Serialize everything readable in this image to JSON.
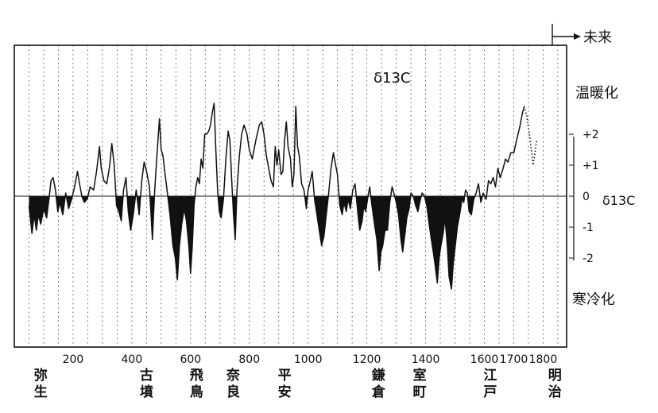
{
  "chart_data": {
    "type": "area",
    "series_label": "δ13C",
    "x_ticks": [
      200,
      400,
      600,
      800,
      1000,
      1200,
      1400,
      1600,
      1700,
      1800
    ],
    "y_ticks": [
      "+2",
      "+1",
      "0",
      "-1",
      "-2"
    ],
    "y_axis_label": "δ13C",
    "xlim": [
      0,
      1880
    ],
    "ylim": [
      -2.5,
      3.0
    ],
    "annotations": {
      "warm": "温暖化",
      "cold": "寒冷化",
      "future": "未来"
    },
    "eras": [
      {
        "line1": "弥",
        "line2": "生",
        "year": 90
      },
      {
        "line1": "古",
        "line2": "墳",
        "year": 450
      },
      {
        "line1": "飛",
        "line2": "鳥",
        "year": 620
      },
      {
        "line1": "奈",
        "line2": "良",
        "year": 745
      },
      {
        "line1": "平",
        "line2": "安",
        "year": 920
      },
      {
        "line1": "鎌",
        "line2": "倉",
        "year": 1240
      },
      {
        "line1": "室",
        "line2": "町",
        "year": 1380
      },
      {
        "line1": "江",
        "line2": "戸",
        "year": 1620
      },
      {
        "line1": "明",
        "line2": "治",
        "year": 1840
      }
    ],
    "points": [
      [
        50,
        -0.3
      ],
      [
        60,
        -1.2
      ],
      [
        68,
        -0.6
      ],
      [
        75,
        -1.1
      ],
      [
        82,
        -0.6
      ],
      [
        90,
        -0.9
      ],
      [
        100,
        -0.4
      ],
      [
        110,
        -0.7
      ],
      [
        118,
        -0.1
      ],
      [
        125,
        0.5
      ],
      [
        132,
        0.6
      ],
      [
        140,
        0.2
      ],
      [
        148,
        -0.5
      ],
      [
        155,
        -0.2
      ],
      [
        165,
        -0.6
      ],
      [
        175,
        0.1
      ],
      [
        185,
        -0.4
      ],
      [
        195,
        -0.1
      ],
      [
        205,
        0.3
      ],
      [
        215,
        0.8
      ],
      [
        222,
        0.4
      ],
      [
        230,
        0.0
      ],
      [
        238,
        -0.2
      ],
      [
        248,
        -0.1
      ],
      [
        258,
        0.3
      ],
      [
        270,
        0.2
      ],
      [
        280,
        0.8
      ],
      [
        290,
        1.6
      ],
      [
        296,
        0.9
      ],
      [
        305,
        0.5
      ],
      [
        315,
        0.4
      ],
      [
        325,
        1.0
      ],
      [
        332,
        1.7
      ],
      [
        340,
        1.0
      ],
      [
        348,
        -0.3
      ],
      [
        356,
        -0.5
      ],
      [
        364,
        -0.8
      ],
      [
        372,
        0.2
      ],
      [
        380,
        0.6
      ],
      [
        388,
        -0.5
      ],
      [
        396,
        -1.1
      ],
      [
        405,
        -0.6
      ],
      [
        415,
        0.2
      ],
      [
        425,
        -0.6
      ],
      [
        434,
        0.5
      ],
      [
        442,
        1.1
      ],
      [
        450,
        0.8
      ],
      [
        460,
        0.3
      ],
      [
        470,
        -1.4
      ],
      [
        478,
        0.2
      ],
      [
        486,
        1.4
      ],
      [
        494,
        2.5
      ],
      [
        500,
        1.5
      ],
      [
        506,
        1.3
      ],
      [
        512,
        0.8
      ],
      [
        520,
        0.2
      ],
      [
        530,
        -0.6
      ],
      [
        540,
        -1.6
      ],
      [
        548,
        -2.0
      ],
      [
        555,
        -2.7
      ],
      [
        562,
        -1.6
      ],
      [
        570,
        -0.9
      ],
      [
        578,
        -0.4
      ],
      [
        586,
        -0.8
      ],
      [
        594,
        -1.6
      ],
      [
        600,
        -2.5
      ],
      [
        606,
        -1.6
      ],
      [
        612,
        -0.3
      ],
      [
        618,
        0.3
      ],
      [
        624,
        0.6
      ],
      [
        630,
        0.4
      ],
      [
        636,
        1.2
      ],
      [
        642,
        0.9
      ],
      [
        648,
        2.0
      ],
      [
        654,
        2.0
      ],
      [
        662,
        2.1
      ],
      [
        668,
        2.3
      ],
      [
        674,
        2.7
      ],
      [
        680,
        3.0
      ],
      [
        686,
        1.5
      ],
      [
        692,
        0.2
      ],
      [
        698,
        -0.5
      ],
      [
        704,
        -0.7
      ],
      [
        712,
        -0.1
      ],
      [
        720,
        1.2
      ],
      [
        728,
        2.1
      ],
      [
        734,
        1.8
      ],
      [
        740,
        0.5
      ],
      [
        746,
        -0.6
      ],
      [
        752,
        -1.4
      ],
      [
        758,
        0.2
      ],
      [
        766,
        1.3
      ],
      [
        774,
        2.0
      ],
      [
        782,
        2.3
      ],
      [
        792,
        2.0
      ],
      [
        800,
        1.5
      ],
      [
        810,
        1.2
      ],
      [
        822,
        1.8
      ],
      [
        834,
        2.3
      ],
      [
        842,
        2.4
      ],
      [
        850,
        2.0
      ],
      [
        858,
        1.3
      ],
      [
        866,
        0.9
      ],
      [
        874,
        0.5
      ],
      [
        882,
        0.3
      ],
      [
        888,
        1.6
      ],
      [
        894,
        1.0
      ],
      [
        900,
        1.5
      ],
      [
        908,
        0.7
      ],
      [
        914,
        0.8
      ],
      [
        920,
        1.8
      ],
      [
        926,
        2.4
      ],
      [
        932,
        1.6
      ],
      [
        940,
        1.2
      ],
      [
        946,
        0.3
      ],
      [
        952,
        0.7
      ],
      [
        958,
        2.9
      ],
      [
        964,
        1.6
      ],
      [
        970,
        1.3
      ],
      [
        978,
        0.4
      ],
      [
        986,
        0.2
      ],
      [
        994,
        -0.4
      ],
      [
        1000,
        0.2
      ],
      [
        1008,
        0.5
      ],
      [
        1014,
        0.8
      ],
      [
        1022,
        -0.1
      ],
      [
        1030,
        -0.6
      ],
      [
        1038,
        -1.1
      ],
      [
        1046,
        -1.6
      ],
      [
        1054,
        -1.3
      ],
      [
        1062,
        -0.6
      ],
      [
        1070,
        0.1
      ],
      [
        1078,
        0.9
      ],
      [
        1086,
        1.4
      ],
      [
        1094,
        1.0
      ],
      [
        1100,
        0.7
      ],
      [
        1108,
        -0.3
      ],
      [
        1116,
        -0.6
      ],
      [
        1122,
        -0.2
      ],
      [
        1130,
        -0.5
      ],
      [
        1136,
        -0.1
      ],
      [
        1144,
        -0.4
      ],
      [
        1152,
        0.2
      ],
      [
        1160,
        0.4
      ],
      [
        1170,
        -0.6
      ],
      [
        1176,
        -1.1
      ],
      [
        1184,
        -0.8
      ],
      [
        1190,
        -0.3
      ],
      [
        1196,
        -0.5
      ],
      [
        1204,
        0.0
      ],
      [
        1210,
        0.3
      ],
      [
        1216,
        -0.2
      ],
      [
        1226,
        -0.9
      ],
      [
        1234,
        -1.4
      ],
      [
        1242,
        -2.4
      ],
      [
        1248,
        -1.8
      ],
      [
        1254,
        -1.6
      ],
      [
        1262,
        -1.1
      ],
      [
        1270,
        -1.1
      ],
      [
        1278,
        -0.2
      ],
      [
        1286,
        0.3
      ],
      [
        1292,
        0.1
      ],
      [
        1300,
        -0.2
      ],
      [
        1308,
        -0.6
      ],
      [
        1316,
        -1.4
      ],
      [
        1322,
        -1.8
      ],
      [
        1330,
        -1.2
      ],
      [
        1336,
        -0.7
      ],
      [
        1344,
        -0.4
      ],
      [
        1350,
        0.1
      ],
      [
        1358,
        0.0
      ],
      [
        1366,
        -0.3
      ],
      [
        1374,
        -0.5
      ],
      [
        1380,
        -0.2
      ],
      [
        1388,
        0.1
      ],
      [
        1396,
        0.0
      ],
      [
        1404,
        -0.3
      ],
      [
        1412,
        -0.9
      ],
      [
        1418,
        -1.3
      ],
      [
        1426,
        -1.8
      ],
      [
        1432,
        -2.2
      ],
      [
        1440,
        -2.8
      ],
      [
        1446,
        -2.0
      ],
      [
        1452,
        -1.6
      ],
      [
        1460,
        -1.2
      ],
      [
        1466,
        -0.7
      ],
      [
        1474,
        -1.6
      ],
      [
        1480,
        -2.6
      ],
      [
        1488,
        -3.0
      ],
      [
        1494,
        -2.2
      ],
      [
        1500,
        -1.7
      ],
      [
        1508,
        -1.0
      ],
      [
        1516,
        -0.6
      ],
      [
        1524,
        -0.1
      ],
      [
        1530,
        -0.2
      ],
      [
        1536,
        0.2
      ],
      [
        1542,
        0.1
      ],
      [
        1548,
        -0.5
      ],
      [
        1556,
        -0.6
      ],
      [
        1564,
        -0.1
      ],
      [
        1572,
        0.1
      ],
      [
        1580,
        0.4
      ],
      [
        1588,
        -0.2
      ],
      [
        1596,
        0.1
      ],
      [
        1606,
        -0.1
      ],
      [
        1614,
        0.5
      ],
      [
        1622,
        0.4
      ],
      [
        1630,
        0.6
      ],
      [
        1638,
        0.3
      ],
      [
        1646,
        0.9
      ],
      [
        1654,
        0.6
      ],
      [
        1664,
        0.9
      ],
      [
        1672,
        1.2
      ],
      [
        1680,
        1.1
      ],
      [
        1690,
        1.4
      ],
      [
        1700,
        1.4
      ],
      [
        1712,
        1.9
      ],
      [
        1722,
        2.3
      ],
      [
        1730,
        2.7
      ],
      [
        1736,
        2.9
      ]
    ],
    "dotted_points": [
      [
        1736,
        2.9
      ],
      [
        1744,
        2.6
      ],
      [
        1752,
        2.1
      ],
      [
        1760,
        1.5
      ],
      [
        1766,
        1.0
      ],
      [
        1772,
        1.4
      ],
      [
        1778,
        1.8
      ]
    ]
  }
}
